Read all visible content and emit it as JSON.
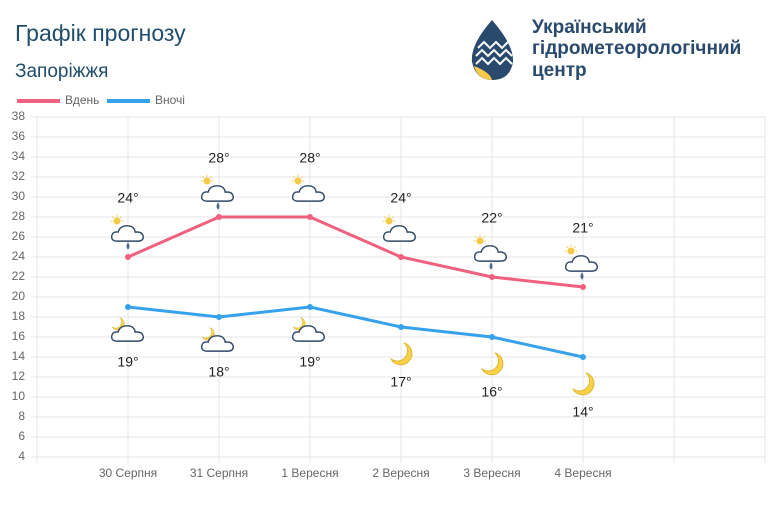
{
  "header": {
    "title": "Графік прогнозу",
    "subtitle": "Запоріжжя",
    "org": [
      "Український",
      "гідрометеорологічний",
      "центр"
    ]
  },
  "chart_data": {
    "type": "line",
    "categories": [
      null,
      "30 Серпня",
      "31 Серпня",
      "1 Вересня",
      "2 Вересня",
      "3 Вересня",
      "4 Вересня",
      null,
      null
    ],
    "series": [
      {
        "name": "Вдень",
        "color": "#f0607f",
        "values": [
          null,
          24,
          28,
          28,
          24,
          22,
          21,
          null,
          null
        ],
        "value_labels": [
          null,
          "24°",
          "28°",
          "28°",
          "24°",
          "22°",
          "21°",
          null,
          null
        ]
      },
      {
        "name": "Вночі",
        "color": "#36a2eb",
        "values": [
          null,
          19,
          18,
          19,
          17,
          16,
          14,
          null,
          null
        ],
        "value_labels": [
          null,
          "19°",
          "18°",
          "19°",
          "17°",
          "16°",
          "14°",
          null,
          null
        ]
      }
    ],
    "ylim": [
      4,
      38
    ],
    "yticks": [
      4,
      6,
      8,
      10,
      12,
      14,
      16,
      18,
      20,
      22,
      24,
      26,
      28,
      30,
      32,
      34,
      36,
      38
    ],
    "grid": true
  }
}
